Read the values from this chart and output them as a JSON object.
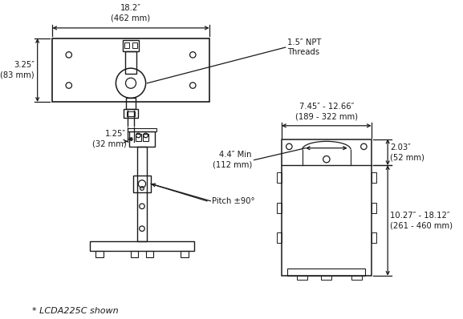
{
  "bg_color": "#ffffff",
  "line_color": "#1a1a1a",
  "font_size_dim": 7.2,
  "title": "* LCDA225C shown",
  "dims": {
    "top_width": "18.2″\n(462 mm)",
    "side_height": "3.25″\n(83 mm)",
    "stem_width": "1.25″\n(32 mm)",
    "npt": "1.5″ NPT\nThreads",
    "range_width": "7.45″ - 12.66″\n(189 - 322 mm)",
    "side_width": "2.03″\n(52 mm)",
    "min_width": "4.4″ Min\n(112 mm)",
    "range_height": "10.27″ - 18.12″\n(261 - 460 mm)",
    "pitch": "Pitch ±90°"
  }
}
